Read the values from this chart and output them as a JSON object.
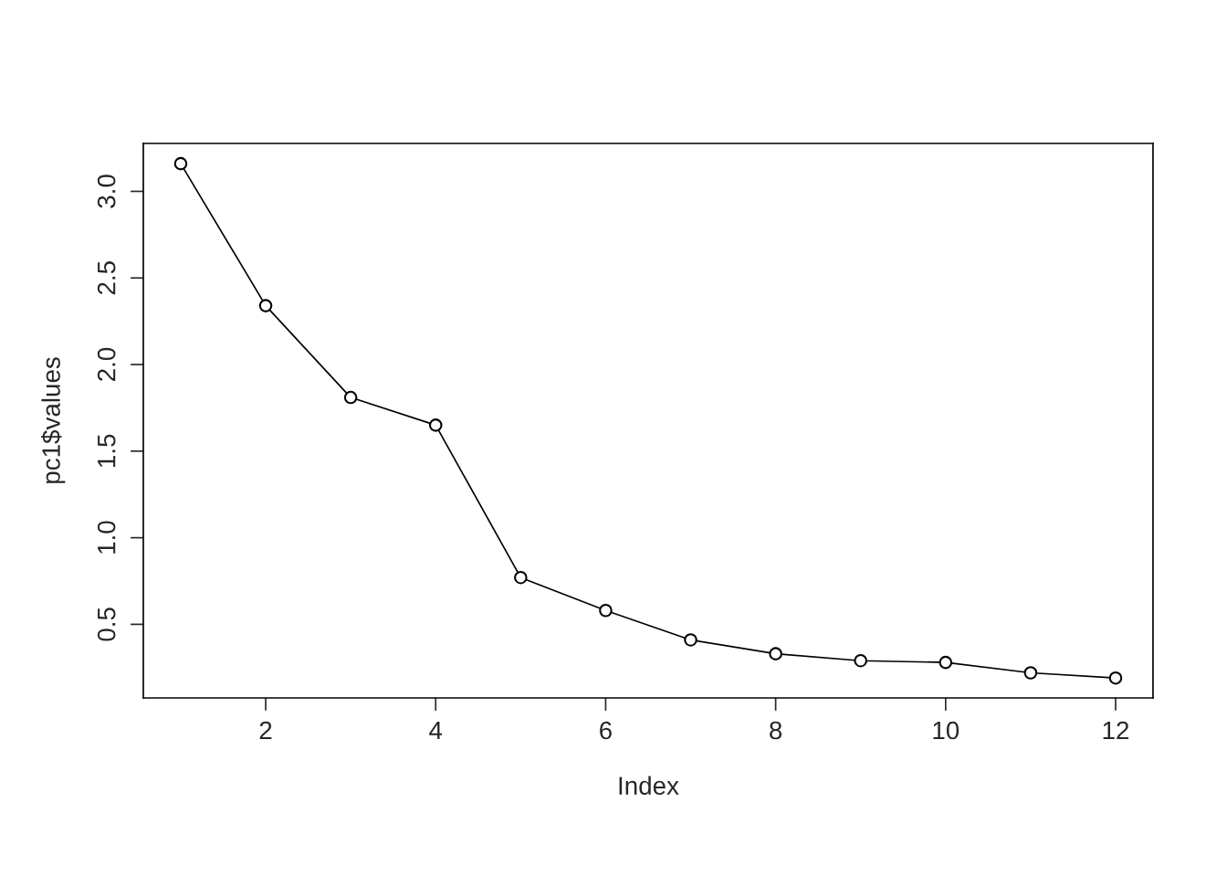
{
  "chart_data": {
    "type": "line",
    "xlabel": "Index",
    "ylabel": "pc1$values",
    "x": [
      1,
      2,
      3,
      4,
      5,
      6,
      7,
      8,
      9,
      10,
      11,
      12
    ],
    "series": [
      {
        "color": "#000000",
        "values": [
          3.16,
          2.34,
          1.81,
          1.65,
          0.77,
          0.58,
          0.41,
          0.33,
          0.29,
          0.28,
          0.22,
          0.19
        ]
      }
    ],
    "xlim": [
      0.56,
      12.44
    ],
    "ylim": [
      0.075,
      3.277
    ],
    "xticks": [
      2,
      4,
      6,
      8,
      10,
      12
    ],
    "yticks": [
      {
        "value": 0.5,
        "label": "0.5"
      },
      {
        "value": 1.0,
        "label": "1.0"
      },
      {
        "value": 1.5,
        "label": "1.5"
      },
      {
        "value": 2.0,
        "label": "2.0"
      },
      {
        "value": 2.5,
        "label": "2.5"
      },
      {
        "value": 3.0,
        "label": "3.0"
      }
    ],
    "marker": "circle",
    "line_style": "solid",
    "grid": false,
    "legend": false
  }
}
